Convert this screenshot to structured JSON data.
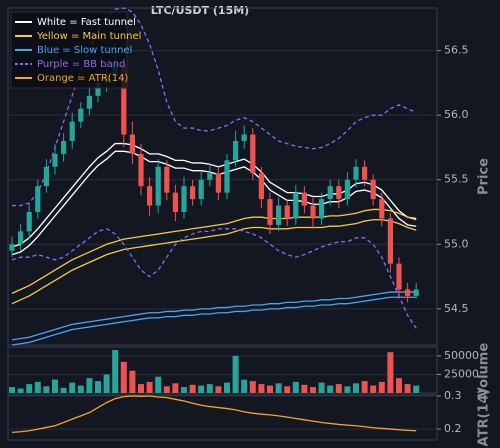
{
  "chart_data": [
    {
      "type": "candlestick",
      "title": "LTC/USDT (15M)",
      "ylabel": "Price",
      "open": [
        54.95,
        55.0,
        55.1,
        55.25,
        55.45,
        55.6,
        55.7,
        55.8,
        55.95,
        56.05,
        56.15,
        56.25,
        56.3,
        56.4,
        55.85,
        55.7,
        55.45,
        55.3,
        55.6,
        55.4,
        55.25,
        55.45,
        55.35,
        55.5,
        55.55,
        55.4,
        55.65,
        55.8,
        55.85,
        55.55,
        55.35,
        55.15,
        55.3,
        55.2,
        55.4,
        55.3,
        55.2,
        55.35,
        55.45,
        55.35,
        55.5,
        55.6,
        55.5,
        55.35,
        55.2,
        54.85,
        54.65,
        54.6
      ],
      "high": [
        55.06,
        55.16,
        55.32,
        55.5,
        55.66,
        55.78,
        55.86,
        56.02,
        56.1,
        56.22,
        56.32,
        56.38,
        56.55,
        56.45,
        55.95,
        55.78,
        55.52,
        55.66,
        55.65,
        55.46,
        55.52,
        55.5,
        55.56,
        55.62,
        55.6,
        55.7,
        55.88,
        55.92,
        55.9,
        55.6,
        55.4,
        55.36,
        55.34,
        55.46,
        55.45,
        55.36,
        55.4,
        55.5,
        55.5,
        55.56,
        55.66,
        55.65,
        55.54,
        55.4,
        55.24,
        54.9,
        54.7,
        54.7
      ],
      "low": [
        54.9,
        54.95,
        55.04,
        55.2,
        55.4,
        55.54,
        55.64,
        55.74,
        55.9,
        56.0,
        56.1,
        56.18,
        56.24,
        55.75,
        55.62,
        55.38,
        55.22,
        55.24,
        55.34,
        55.18,
        55.2,
        55.3,
        55.3,
        55.45,
        55.34,
        55.35,
        55.6,
        55.74,
        55.5,
        55.28,
        55.08,
        55.1,
        55.14,
        55.15,
        55.24,
        55.12,
        55.15,
        55.3,
        55.28,
        55.3,
        55.44,
        55.45,
        55.3,
        55.14,
        54.78,
        54.58,
        54.55,
        54.58
      ],
      "close": [
        55.0,
        55.1,
        55.25,
        55.45,
        55.6,
        55.7,
        55.8,
        55.95,
        56.05,
        56.15,
        56.25,
        56.3,
        56.4,
        55.85,
        55.7,
        55.45,
        55.3,
        55.6,
        55.4,
        55.25,
        55.45,
        55.35,
        55.5,
        55.55,
        55.4,
        55.65,
        55.8,
        55.85,
        55.55,
        55.35,
        55.15,
        55.3,
        55.2,
        55.4,
        55.3,
        55.2,
        55.35,
        55.45,
        55.35,
        55.5,
        55.6,
        55.5,
        55.35,
        55.2,
        54.85,
        54.65,
        54.6,
        54.65
      ],
      "up_color": "#26a69a",
      "down_color": "#ef5350",
      "series": [
        {
          "name": "White = Fast tunnel",
          "color": "#ffffff",
          "dashed": false,
          "upper": [
            54.98,
            55.0,
            55.05,
            55.12,
            55.2,
            55.28,
            55.36,
            55.44,
            55.52,
            55.6,
            55.67,
            55.72,
            55.78,
            55.78,
            55.77,
            55.74,
            55.7,
            55.7,
            55.68,
            55.65,
            55.65,
            55.63,
            55.63,
            55.62,
            55.6,
            55.62,
            55.64,
            55.66,
            55.62,
            55.56,
            55.48,
            55.44,
            55.4,
            55.4,
            55.39,
            55.37,
            55.37,
            55.39,
            55.39,
            55.42,
            55.47,
            55.48,
            55.46,
            55.42,
            55.34,
            55.26,
            55.21,
            55.2
          ],
          "lower": [
            54.92,
            54.94,
            54.99,
            55.06,
            55.14,
            55.22,
            55.3,
            55.38,
            55.46,
            55.54,
            55.61,
            55.66,
            55.72,
            55.72,
            55.71,
            55.68,
            55.64,
            55.64,
            55.62,
            55.59,
            55.59,
            55.57,
            55.57,
            55.56,
            55.54,
            55.56,
            55.58,
            55.6,
            55.56,
            55.5,
            55.42,
            55.38,
            55.34,
            55.34,
            55.33,
            55.31,
            55.31,
            55.33,
            55.33,
            55.36,
            55.41,
            55.42,
            55.4,
            55.36,
            55.28,
            55.2,
            55.15,
            55.14
          ]
        },
        {
          "name": "Yellow = Main tunnel",
          "color": "#f7c948",
          "dashed": false,
          "upper": [
            54.62,
            54.65,
            54.68,
            54.72,
            54.76,
            54.8,
            54.84,
            54.88,
            54.91,
            54.94,
            54.97,
            55.0,
            55.02,
            55.04,
            55.05,
            55.06,
            55.07,
            55.08,
            55.09,
            55.1,
            55.11,
            55.12,
            55.13,
            55.14,
            55.15,
            55.16,
            55.18,
            55.2,
            55.21,
            55.21,
            55.2,
            55.2,
            55.2,
            55.21,
            55.21,
            55.21,
            55.21,
            55.22,
            55.22,
            55.23,
            55.24,
            55.26,
            55.27,
            55.27,
            55.26,
            55.24,
            55.21,
            55.19
          ],
          "lower": [
            54.54,
            54.57,
            54.6,
            54.64,
            54.68,
            54.72,
            54.76,
            54.8,
            54.83,
            54.86,
            54.89,
            54.92,
            54.94,
            54.96,
            54.97,
            54.98,
            54.99,
            55.0,
            55.01,
            55.02,
            55.03,
            55.04,
            55.05,
            55.06,
            55.07,
            55.08,
            55.1,
            55.12,
            55.13,
            55.13,
            55.12,
            55.12,
            55.12,
            55.13,
            55.13,
            55.13,
            55.13,
            55.14,
            55.14,
            55.15,
            55.16,
            55.18,
            55.19,
            55.19,
            55.18,
            55.16,
            55.13,
            55.11
          ]
        },
        {
          "name": "Blue = Slow tunnel",
          "color": "#4da3f0",
          "dashed": false,
          "upper": [
            54.26,
            54.27,
            54.28,
            54.3,
            54.32,
            54.34,
            54.36,
            54.38,
            54.39,
            54.4,
            54.41,
            54.42,
            54.43,
            54.44,
            54.45,
            54.46,
            54.47,
            54.47,
            54.48,
            54.48,
            54.49,
            54.49,
            54.5,
            54.5,
            54.51,
            54.51,
            54.52,
            54.52,
            54.53,
            54.53,
            54.54,
            54.54,
            54.55,
            54.55,
            54.56,
            54.56,
            54.57,
            54.57,
            54.58,
            54.58,
            54.59,
            54.6,
            54.61,
            54.62,
            54.63,
            54.63,
            54.63,
            54.63
          ],
          "lower": [
            54.22,
            54.23,
            54.24,
            54.26,
            54.28,
            54.3,
            54.32,
            54.34,
            54.35,
            54.36,
            54.37,
            54.38,
            54.39,
            54.4,
            54.41,
            54.42,
            54.43,
            54.43,
            54.44,
            54.44,
            54.45,
            54.45,
            54.46,
            54.46,
            54.47,
            54.47,
            54.48,
            54.48,
            54.49,
            54.49,
            54.5,
            54.5,
            54.51,
            54.51,
            54.52,
            54.52,
            54.53,
            54.53,
            54.54,
            54.54,
            54.55,
            54.56,
            54.57,
            54.58,
            54.59,
            54.59,
            54.59,
            54.59
          ]
        },
        {
          "name": "Purple = BB band",
          "color": "#8c6cf0",
          "dashed": true,
          "upper": [
            55.3,
            55.3,
            55.32,
            55.4,
            55.55,
            55.75,
            55.95,
            56.15,
            56.35,
            56.5,
            56.65,
            56.75,
            56.82,
            56.83,
            56.8,
            56.7,
            56.55,
            56.35,
            56.1,
            55.95,
            55.9,
            55.9,
            55.88,
            55.88,
            55.9,
            55.92,
            55.96,
            55.98,
            55.95,
            55.9,
            55.85,
            55.8,
            55.78,
            55.76,
            55.75,
            55.74,
            55.75,
            55.78,
            55.82,
            55.88,
            55.95,
            55.98,
            56.0,
            56.0,
            56.05,
            56.08,
            56.05,
            56.02
          ],
          "lower": [
            54.88,
            54.9,
            54.9,
            54.92,
            54.9,
            54.88,
            54.9,
            54.95,
            55.0,
            55.05,
            55.1,
            55.12,
            55.08,
            55.0,
            54.9,
            54.8,
            54.75,
            54.8,
            54.9,
            55.0,
            55.05,
            55.08,
            55.1,
            55.1,
            55.12,
            55.12,
            55.12,
            55.1,
            55.08,
            55.05,
            55.0,
            54.95,
            54.92,
            54.9,
            54.92,
            54.95,
            54.98,
            55.0,
            55.02,
            55.02,
            55.05,
            55.05,
            55.0,
            54.9,
            54.75,
            54.6,
            54.45,
            54.35
          ]
        }
      ],
      "ylim": [
        54.22,
        56.83
      ],
      "yticks": [
        54.5,
        {
          "value": 55,
          "label": "55.0"
        },
        55.5,
        {
          "value": 56,
          "label": "56.0"
        },
        56.5
      ],
      "grid": true,
      "legend": "upper left"
    },
    {
      "type": "bar",
      "ylabel": "Volume",
      "values": [
        8000,
        6000,
        12000,
        15000,
        9000,
        18000,
        7000,
        14000,
        10000,
        20000,
        16000,
        25000,
        58000,
        42000,
        30000,
        12000,
        15000,
        22000,
        9000,
        13000,
        8000,
        11000,
        10000,
        12000,
        9000,
        14000,
        50000,
        18000,
        16000,
        12000,
        10000,
        13000,
        9000,
        15000,
        11000,
        8000,
        14000,
        10000,
        12000,
        9000,
        13000,
        16000,
        10000,
        15000,
        55000,
        20000,
        12000,
        10000
      ],
      "ylim": [
        0,
        62000
      ],
      "yticks": [
        25000,
        50000
      ],
      "grid": true
    },
    {
      "type": "line",
      "ylabel": "ATR(14)",
      "series": [
        {
          "name": "Orange = ATR(14)",
          "color": "#f5a623",
          "values": [
            0.19,
            0.192,
            0.195,
            0.2,
            0.205,
            0.21,
            0.22,
            0.23,
            0.24,
            0.25,
            0.265,
            0.28,
            0.292,
            0.298,
            0.3,
            0.299,
            0.3,
            0.297,
            0.295,
            0.29,
            0.285,
            0.278,
            0.272,
            0.268,
            0.265,
            0.262,
            0.258,
            0.252,
            0.248,
            0.245,
            0.243,
            0.24,
            0.236,
            0.232,
            0.228,
            0.224,
            0.22,
            0.217,
            0.214,
            0.212,
            0.21,
            0.207,
            0.204,
            0.202,
            0.2,
            0.198,
            0.196,
            0.195
          ]
        }
      ],
      "ylim": [
        0.167,
        0.303
      ],
      "yticks": [
        0.2,
        0.3
      ],
      "grid": true
    }
  ]
}
